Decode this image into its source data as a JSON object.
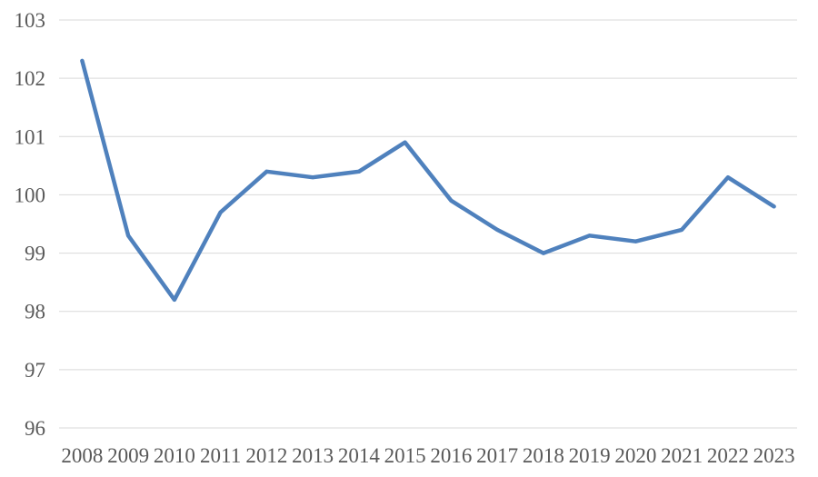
{
  "chart_data": {
    "type": "line",
    "title": "",
    "xlabel": "",
    "ylabel": "",
    "x": [
      "2008",
      "2009",
      "2010",
      "2011",
      "2012",
      "2013",
      "2014",
      "2015",
      "2016",
      "2017",
      "2018",
      "2019",
      "2020",
      "2021",
      "2022",
      "2023"
    ],
    "series": [
      {
        "name": "",
        "values": [
          102.3,
          99.3,
          98.2,
          99.7,
          100.4,
          100.3,
          100.4,
          100.9,
          99.9,
          99.4,
          99.0,
          99.3,
          99.2,
          99.4,
          100.3,
          99.8
        ]
      }
    ],
    "ylim": [
      96,
      103
    ],
    "ytick_step": 1,
    "y_tick_labels": [
      "103",
      "102",
      "101",
      "100",
      "99",
      "98",
      "97",
      "96"
    ],
    "grid": true,
    "legend_position": "none"
  },
  "colors": {
    "line": "#4F81BD",
    "gridline": "#D9D9D9",
    "tick_label": "#595959",
    "background": "#FFFFFF"
  }
}
